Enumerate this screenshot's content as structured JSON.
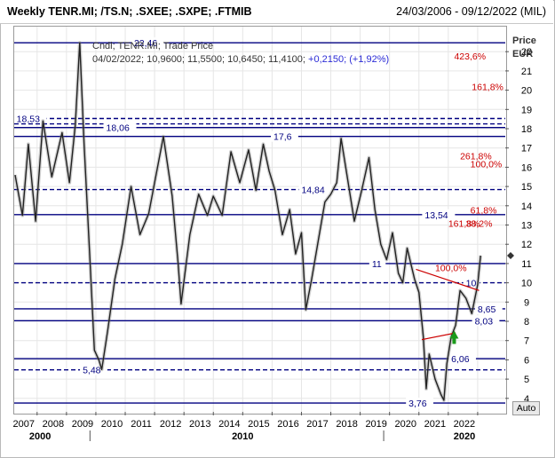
{
  "header": {
    "title": "Weekly TENR.MI; /TS.N; .SXEE; .SXPE; .FTMIB",
    "date_range": "24/03/2006 - 09/12/2022 (MIL)"
  },
  "info": {
    "line1": "Cndl; TENR.MI; Trade Price",
    "line2_ohlc": "04/02/2022; 10,9600; 11,5500; 10,6450; 11,4100;",
    "line2_change": "+0,2150; (+1,92%)"
  },
  "axis": {
    "head1": "Price",
    "head2": "EUR",
    "auto_label": "Auto"
  },
  "chart_data": {
    "type": "line",
    "series": [
      {
        "values": [
          {
            "x": 2006.25,
            "y": 15.6
          },
          {
            "x": 2006.5,
            "y": 13.5
          },
          {
            "x": 2006.7,
            "y": 17.2
          },
          {
            "x": 2006.95,
            "y": 13.2
          },
          {
            "x": 2007.2,
            "y": 18.4
          },
          {
            "x": 2007.5,
            "y": 15.5
          },
          {
            "x": 2007.85,
            "y": 17.8
          },
          {
            "x": 2008.1,
            "y": 15.2
          },
          {
            "x": 2008.3,
            "y": 18.2
          },
          {
            "x": 2008.45,
            "y": 22.46
          },
          {
            "x": 2008.6,
            "y": 17.2
          },
          {
            "x": 2008.8,
            "y": 11.2
          },
          {
            "x": 2008.95,
            "y": 6.5
          },
          {
            "x": 2009.1,
            "y": 6.0
          },
          {
            "x": 2009.2,
            "y": 5.5
          },
          {
            "x": 2009.4,
            "y": 7.5
          },
          {
            "x": 2009.65,
            "y": 10.2
          },
          {
            "x": 2009.9,
            "y": 12.0
          },
          {
            "x": 2010.2,
            "y": 15.0
          },
          {
            "x": 2010.5,
            "y": 12.5
          },
          {
            "x": 2010.8,
            "y": 13.6
          },
          {
            "x": 2011.0,
            "y": 15.2
          },
          {
            "x": 2011.3,
            "y": 17.6
          },
          {
            "x": 2011.6,
            "y": 14.5
          },
          {
            "x": 2011.8,
            "y": 11.0
          },
          {
            "x": 2011.9,
            "y": 8.9
          },
          {
            "x": 2012.2,
            "y": 12.5
          },
          {
            "x": 2012.5,
            "y": 14.6
          },
          {
            "x": 2012.8,
            "y": 13.5
          },
          {
            "x": 2013.0,
            "y": 14.5
          },
          {
            "x": 2013.3,
            "y": 13.5
          },
          {
            "x": 2013.6,
            "y": 16.8
          },
          {
            "x": 2013.9,
            "y": 15.2
          },
          {
            "x": 2014.2,
            "y": 16.9
          },
          {
            "x": 2014.45,
            "y": 14.8
          },
          {
            "x": 2014.7,
            "y": 17.2
          },
          {
            "x": 2014.9,
            "y": 15.8
          },
          {
            "x": 2015.1,
            "y": 14.8
          },
          {
            "x": 2015.35,
            "y": 12.5
          },
          {
            "x": 2015.6,
            "y": 13.8
          },
          {
            "x": 2015.8,
            "y": 11.5
          },
          {
            "x": 2016.0,
            "y": 12.6
          },
          {
            "x": 2016.15,
            "y": 8.6
          },
          {
            "x": 2016.35,
            "y": 10.2
          },
          {
            "x": 2016.55,
            "y": 12.0
          },
          {
            "x": 2016.8,
            "y": 14.2
          },
          {
            "x": 2017.0,
            "y": 14.6
          },
          {
            "x": 2017.2,
            "y": 15.2
          },
          {
            "x": 2017.35,
            "y": 17.5
          },
          {
            "x": 2017.55,
            "y": 15.6
          },
          {
            "x": 2017.8,
            "y": 13.2
          },
          {
            "x": 2018.05,
            "y": 14.8
          },
          {
            "x": 2018.3,
            "y": 16.5
          },
          {
            "x": 2018.5,
            "y": 13.8
          },
          {
            "x": 2018.7,
            "y": 12.0
          },
          {
            "x": 2018.9,
            "y": 11.2
          },
          {
            "x": 2019.1,
            "y": 12.6
          },
          {
            "x": 2019.3,
            "y": 10.5
          },
          {
            "x": 2019.45,
            "y": 10.0
          },
          {
            "x": 2019.6,
            "y": 11.8
          },
          {
            "x": 2019.85,
            "y": 10.2
          },
          {
            "x": 2020.0,
            "y": 9.5
          },
          {
            "x": 2020.15,
            "y": 7.2
          },
          {
            "x": 2020.25,
            "y": 4.5
          },
          {
            "x": 2020.35,
            "y": 6.3
          },
          {
            "x": 2020.55,
            "y": 5.0
          },
          {
            "x": 2020.75,
            "y": 4.2
          },
          {
            "x": 2020.85,
            "y": 3.9
          },
          {
            "x": 2020.95,
            "y": 5.8
          },
          {
            "x": 2021.1,
            "y": 7.2
          },
          {
            "x": 2021.25,
            "y": 7.8
          },
          {
            "x": 2021.4,
            "y": 9.6
          },
          {
            "x": 2021.6,
            "y": 9.2
          },
          {
            "x": 2021.8,
            "y": 8.4
          },
          {
            "x": 2022.0,
            "y": 9.9
          },
          {
            "x": 2022.1,
            "y": 11.41
          }
        ]
      }
    ],
    "xlim": [
      2006.22,
      2022.94
    ],
    "ylim": [
      3.3,
      23.3
    ],
    "y_ticks": [
      4,
      5,
      6,
      7,
      8,
      9,
      10,
      11,
      12,
      13,
      14,
      15,
      16,
      17,
      18,
      19,
      20,
      21,
      22
    ],
    "x_tick_labels": [
      "2007",
      "2008",
      "2009",
      "2010",
      "2011",
      "2012",
      "2013",
      "2014",
      "2015",
      "2016",
      "2017",
      "2018",
      "2019",
      "2020",
      "2021",
      "2022"
    ],
    "x_tick_values": [
      2007,
      2008,
      2009,
      2010,
      2011,
      2012,
      2013,
      2014,
      2015,
      2016,
      2017,
      2018,
      2019,
      2020,
      2021,
      2022
    ],
    "x_decade_labels": [
      {
        "text": "2000",
        "x": 2007.1
      },
      {
        "text": "2010",
        "x": 2014.0
      },
      {
        "text": "2020",
        "x": 2021.55
      }
    ],
    "hlines": [
      {
        "y": 22.46,
        "style": "solid",
        "label": "22,46",
        "label_x": 2010.3
      },
      {
        "y": 18.53,
        "style": "dashed",
        "label": "18,53",
        "label_x": 2006.3
      },
      {
        "y": 18.25,
        "style": "dashed",
        "label": "",
        "label_x": 2006.3
      },
      {
        "y": 18.06,
        "style": "solid",
        "label": "18,06",
        "label_x": 2009.35
      },
      {
        "y": 17.6,
        "style": "solid",
        "label": "17,6",
        "label_x": 2015.05
      },
      {
        "y": 14.84,
        "style": "dashed",
        "label": "14,84",
        "label_x": 2016.0
      },
      {
        "y": 13.54,
        "style": "solid",
        "label": "13,54",
        "label_x": 2020.2
      },
      {
        "y": 11.0,
        "style": "solid",
        "label": "11",
        "label_x": 2018.4
      },
      {
        "y": 10.0,
        "style": "dashed",
        "label": "10",
        "label_x": 2021.6
      },
      {
        "y": 8.65,
        "style": "solid",
        "label": "8,65",
        "label_x": 2022.0
      },
      {
        "y": 8.03,
        "style": "solid",
        "label": "8,03",
        "label_x": 2021.9
      },
      {
        "y": 6.06,
        "style": "solid",
        "label": "6,06",
        "label_x": 2021.1
      },
      {
        "y": 5.48,
        "style": "dashed",
        "label": "5,48",
        "label_x": 2008.55
      },
      {
        "y": 3.76,
        "style": "solid",
        "label": "3,76",
        "label_x": 2019.65
      }
    ],
    "fib_labels": [
      {
        "text": "423,6%",
        "x": 2021.2,
        "y": 21.6
      },
      {
        "text": "161,8%",
        "x": 2021.8,
        "y": 20.0
      },
      {
        "text": "261,8%",
        "x": 2021.4,
        "y": 16.4
      },
      {
        "text": "100,0%",
        "x": 2021.75,
        "y": 16.0
      },
      {
        "text": "61,8%",
        "x": 2021.75,
        "y": 13.6
      },
      {
        "text": "161,8%",
        "x": 2021.0,
        "y": 12.9
      },
      {
        "text": "38,2%",
        "x": 2021.6,
        "y": 12.9
      },
      {
        "text": "100,0%",
        "x": 2020.55,
        "y": 10.6
      }
    ],
    "trendlines": [
      {
        "x1": 2019.9,
        "y1": 10.7,
        "x2": 2022.05,
        "y2": 9.6
      },
      {
        "x1": 2020.1,
        "y1": 7.05,
        "x2": 2021.25,
        "y2": 7.4
      }
    ],
    "arrow": {
      "x": 2021.2,
      "y": 7.1
    },
    "marker": {
      "y": 11.41
    }
  },
  "colors": {
    "price": "#222222",
    "hline": "#000080",
    "fib": "#cc0000",
    "trend": "#cc0000",
    "arrow": "#1b9a1b",
    "blue_text": "#2b2bd6"
  }
}
